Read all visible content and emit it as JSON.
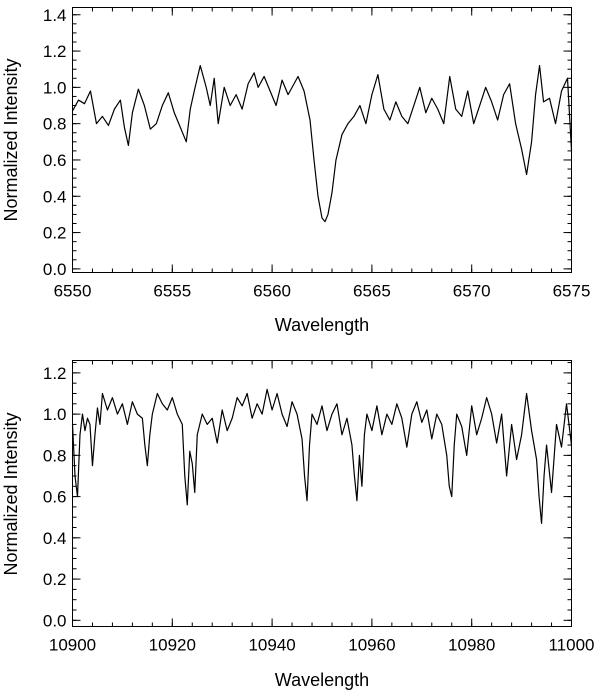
{
  "chart_data": [
    {
      "type": "line",
      "title": "",
      "xlabel": "Wavelength",
      "ylabel": "Normalized Intensity",
      "xlim": [
        6550,
        6575
      ],
      "ylim": [
        -0.02,
        1.44
      ],
      "xticks": [
        6550,
        6555,
        6560,
        6565,
        6570,
        6575
      ],
      "xtick_labels": [
        "6550",
        "6555",
        "6560",
        "6565",
        "6570",
        "6575"
      ],
      "yticks": [
        0.0,
        0.2,
        0.4,
        0.6,
        0.8,
        1.0,
        1.2,
        1.4
      ],
      "ytick_labels": [
        "0.0",
        "0.2",
        "0.4",
        "0.6",
        "0.8",
        "1.0",
        "1.2",
        "1.4"
      ],
      "grid": false,
      "series": [
        {
          "x": [
            6550.0,
            6550.3,
            6550.6,
            6550.9,
            6551.2,
            6551.5,
            6551.8,
            6552.1,
            6552.4,
            6552.6,
            6552.8,
            6553.0,
            6553.3,
            6553.6,
            6553.9,
            6554.2,
            6554.5,
            6554.8,
            6555.1,
            6555.4,
            6555.7,
            6555.9,
            6556.1,
            6556.4,
            6556.7,
            6556.9,
            6557.1,
            6557.3,
            6557.6,
            6557.9,
            6558.2,
            6558.5,
            6558.8,
            6559.1,
            6559.3,
            6559.6,
            6559.9,
            6560.2,
            6560.5,
            6560.8,
            6561.1,
            6561.3,
            6561.6,
            6561.9,
            6562.1,
            6562.3,
            6562.5,
            6562.65,
            6562.8,
            6563.0,
            6563.2,
            6563.5,
            6563.8,
            6564.1,
            6564.4,
            6564.7,
            6565.0,
            6565.3,
            6565.6,
            6565.9,
            6566.2,
            6566.5,
            6566.8,
            6567.1,
            6567.4,
            6567.7,
            6568.0,
            6568.3,
            6568.6,
            6568.9,
            6569.2,
            6569.5,
            6569.8,
            6570.1,
            6570.4,
            6570.7,
            6571.0,
            6571.3,
            6571.6,
            6571.9,
            6572.2,
            6572.5,
            6572.75,
            6573.0,
            6573.2,
            6573.4,
            6573.6,
            6573.9,
            6574.2,
            6574.5,
            6574.8,
            6575.0
          ],
          "y": [
            0.87,
            0.93,
            0.91,
            0.98,
            0.8,
            0.84,
            0.79,
            0.88,
            0.93,
            0.78,
            0.68,
            0.86,
            0.99,
            0.9,
            0.77,
            0.8,
            0.9,
            0.97,
            0.86,
            0.78,
            0.7,
            0.88,
            0.98,
            1.12,
            1.0,
            0.9,
            1.05,
            0.8,
            1.0,
            0.9,
            0.96,
            0.88,
            1.02,
            1.08,
            1.0,
            1.06,
            0.98,
            0.9,
            1.04,
            0.96,
            1.02,
            1.06,
            0.98,
            0.82,
            0.6,
            0.4,
            0.28,
            0.26,
            0.3,
            0.42,
            0.6,
            0.74,
            0.8,
            0.84,
            0.9,
            0.8,
            0.96,
            1.07,
            0.88,
            0.82,
            0.92,
            0.84,
            0.8,
            0.9,
            1.0,
            0.86,
            0.94,
            0.88,
            0.8,
            1.06,
            0.88,
            0.84,
            0.98,
            0.8,
            0.9,
            1.0,
            0.92,
            0.82,
            0.96,
            1.02,
            0.8,
            0.66,
            0.52,
            0.7,
            0.96,
            1.12,
            0.92,
            0.94,
            0.8,
            0.98,
            1.05,
            0.65
          ]
        }
      ]
    },
    {
      "type": "line",
      "title": "",
      "xlabel": "Wavelength",
      "ylabel": "Normalized Intensity",
      "xlim": [
        10900,
        11000
      ],
      "ylim": [
        -0.03,
        1.26
      ],
      "xticks": [
        10900,
        10920,
        10940,
        10960,
        10980,
        11000
      ],
      "xtick_labels": [
        "10900",
        "10920",
        "10940",
        "10960",
        "10980",
        "11000"
      ],
      "yticks": [
        0.0,
        0.2,
        0.4,
        0.6,
        0.8,
        1.0,
        1.2
      ],
      "ytick_labels": [
        "0.0",
        "0.2",
        "0.4",
        "0.6",
        "0.8",
        "1.0",
        "1.2"
      ],
      "grid": false,
      "series": [
        {
          "x": [
            10900.0,
            10900.5,
            10901.0,
            10901.5,
            10902.0,
            10902.5,
            10903.0,
            10903.5,
            10904.0,
            10904.5,
            10905.0,
            10905.5,
            10906.0,
            10907.0,
            10908.0,
            10909.0,
            10910.0,
            10911.0,
            10912.0,
            10913.0,
            10914.0,
            10914.5,
            10915.0,
            10915.5,
            10916.0,
            10917.0,
            10918.0,
            10919.0,
            10920.0,
            10921.0,
            10922.0,
            10922.5,
            10923.0,
            10923.5,
            10924.0,
            10924.5,
            10925.0,
            10926.0,
            10927.0,
            10928.0,
            10929.0,
            10930.0,
            10931.0,
            10932.0,
            10933.0,
            10934.0,
            10935.0,
            10936.0,
            10937.0,
            10938.0,
            10939.0,
            10940.0,
            10941.0,
            10942.0,
            10943.0,
            10944.0,
            10945.0,
            10946.0,
            10946.5,
            10947.0,
            10947.5,
            10948.0,
            10949.0,
            10950.0,
            10951.0,
            10952.0,
            10953.0,
            10954.0,
            10955.0,
            10956.0,
            10956.5,
            10957.0,
            10957.5,
            10958.0,
            10958.5,
            10959.0,
            10960.0,
            10961.0,
            10962.0,
            10963.0,
            10964.0,
            10965.0,
            10966.0,
            10967.0,
            10968.0,
            10969.0,
            10970.0,
            10971.0,
            10972.0,
            10973.0,
            10974.0,
            10975.0,
            10975.5,
            10976.0,
            10976.5,
            10977.0,
            10978.0,
            10979.0,
            10980.0,
            10981.0,
            10982.0,
            10983.0,
            10984.0,
            10985.0,
            10986.0,
            10987.0,
            10988.0,
            10989.0,
            10990.0,
            10991.0,
            10992.0,
            10993.0,
            10993.5,
            10994.0,
            10994.5,
            10995.0,
            10996.0,
            10997.0,
            10998.0,
            10999.0,
            11000.0
          ],
          "y": [
            0.95,
            0.7,
            0.6,
            0.9,
            1.0,
            0.92,
            0.98,
            0.95,
            0.75,
            0.9,
            1.03,
            0.95,
            1.1,
            1.02,
            1.08,
            1.0,
            1.05,
            0.95,
            1.06,
            1.0,
            0.98,
            0.85,
            0.75,
            0.9,
            1.0,
            1.1,
            1.05,
            1.02,
            1.08,
            1.0,
            0.95,
            0.7,
            0.56,
            0.82,
            0.76,
            0.62,
            0.9,
            1.0,
            0.95,
            0.98,
            0.86,
            1.02,
            0.92,
            0.98,
            1.08,
            1.04,
            1.1,
            0.98,
            1.05,
            1.0,
            1.12,
            1.02,
            1.1,
            1.0,
            0.94,
            1.06,
            1.0,
            0.88,
            0.7,
            0.58,
            0.85,
            1.0,
            0.95,
            1.04,
            0.92,
            1.0,
            1.05,
            0.9,
            0.98,
            0.85,
            0.7,
            0.58,
            0.8,
            0.65,
            0.9,
            1.0,
            0.92,
            1.04,
            0.9,
            1.0,
            0.95,
            1.05,
            0.98,
            0.84,
            1.0,
            1.06,
            0.96,
            1.02,
            0.88,
            1.0,
            0.95,
            0.8,
            0.65,
            0.6,
            0.85,
            1.0,
            0.94,
            0.8,
            1.04,
            0.9,
            0.98,
            1.08,
            1.0,
            0.86,
            1.0,
            0.7,
            0.95,
            0.78,
            0.9,
            1.1,
            0.92,
            0.78,
            0.6,
            0.47,
            0.7,
            0.85,
            0.62,
            0.95,
            0.84,
            1.05,
            0.85
          ]
        }
      ]
    }
  ]
}
